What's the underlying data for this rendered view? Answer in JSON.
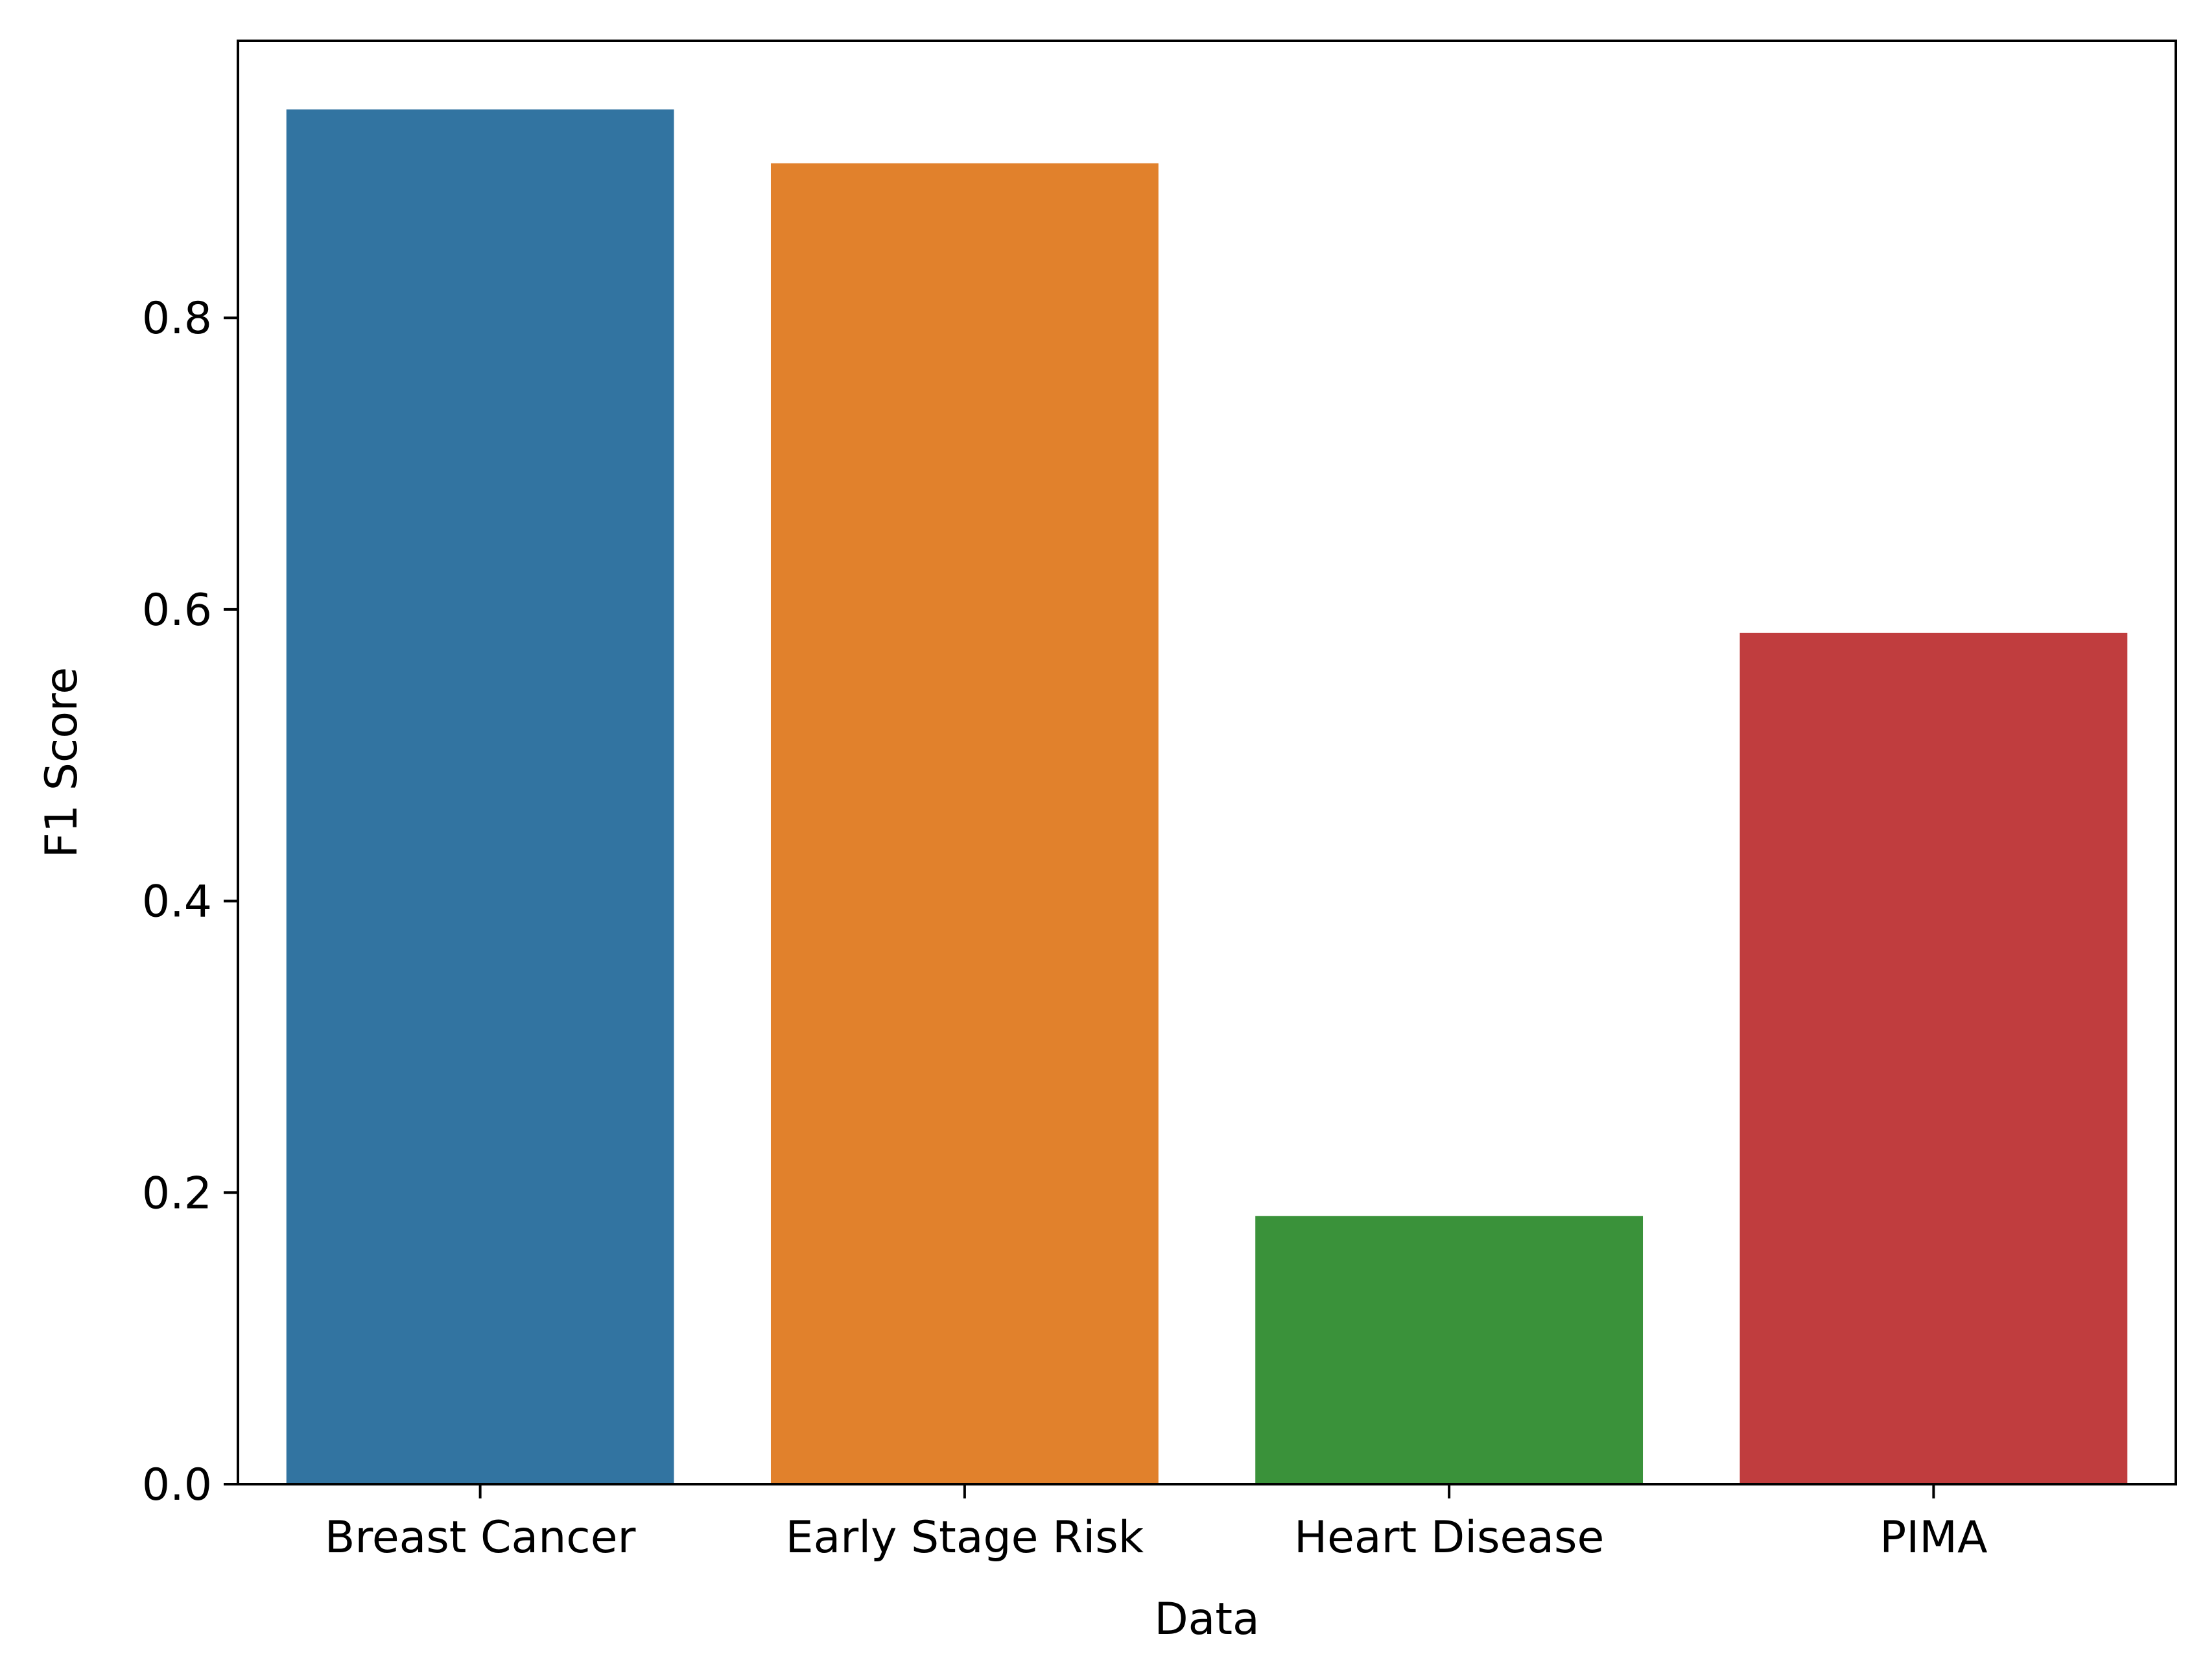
{
  "chart_data": {
    "type": "bar",
    "title": "",
    "xlabel": "Data",
    "ylabel": "F1 Score",
    "categories": [
      "Breast Cancer",
      "Early Stage Risk",
      "Heart Disease",
      "PIMA"
    ],
    "values": [
      0.943,
      0.906,
      0.184,
      0.584
    ],
    "colors": [
      "#3274a1",
      "#e1812c",
      "#3a923a",
      "#c03d3e"
    ],
    "ylim": [
      0,
      0.99
    ],
    "yticks": [
      0.0,
      0.2,
      0.4,
      0.6,
      0.8
    ],
    "ytick_labels": [
      "0.0",
      "0.2",
      "0.4",
      "0.6",
      "0.8"
    ],
    "grid": false,
    "legend": "none"
  }
}
